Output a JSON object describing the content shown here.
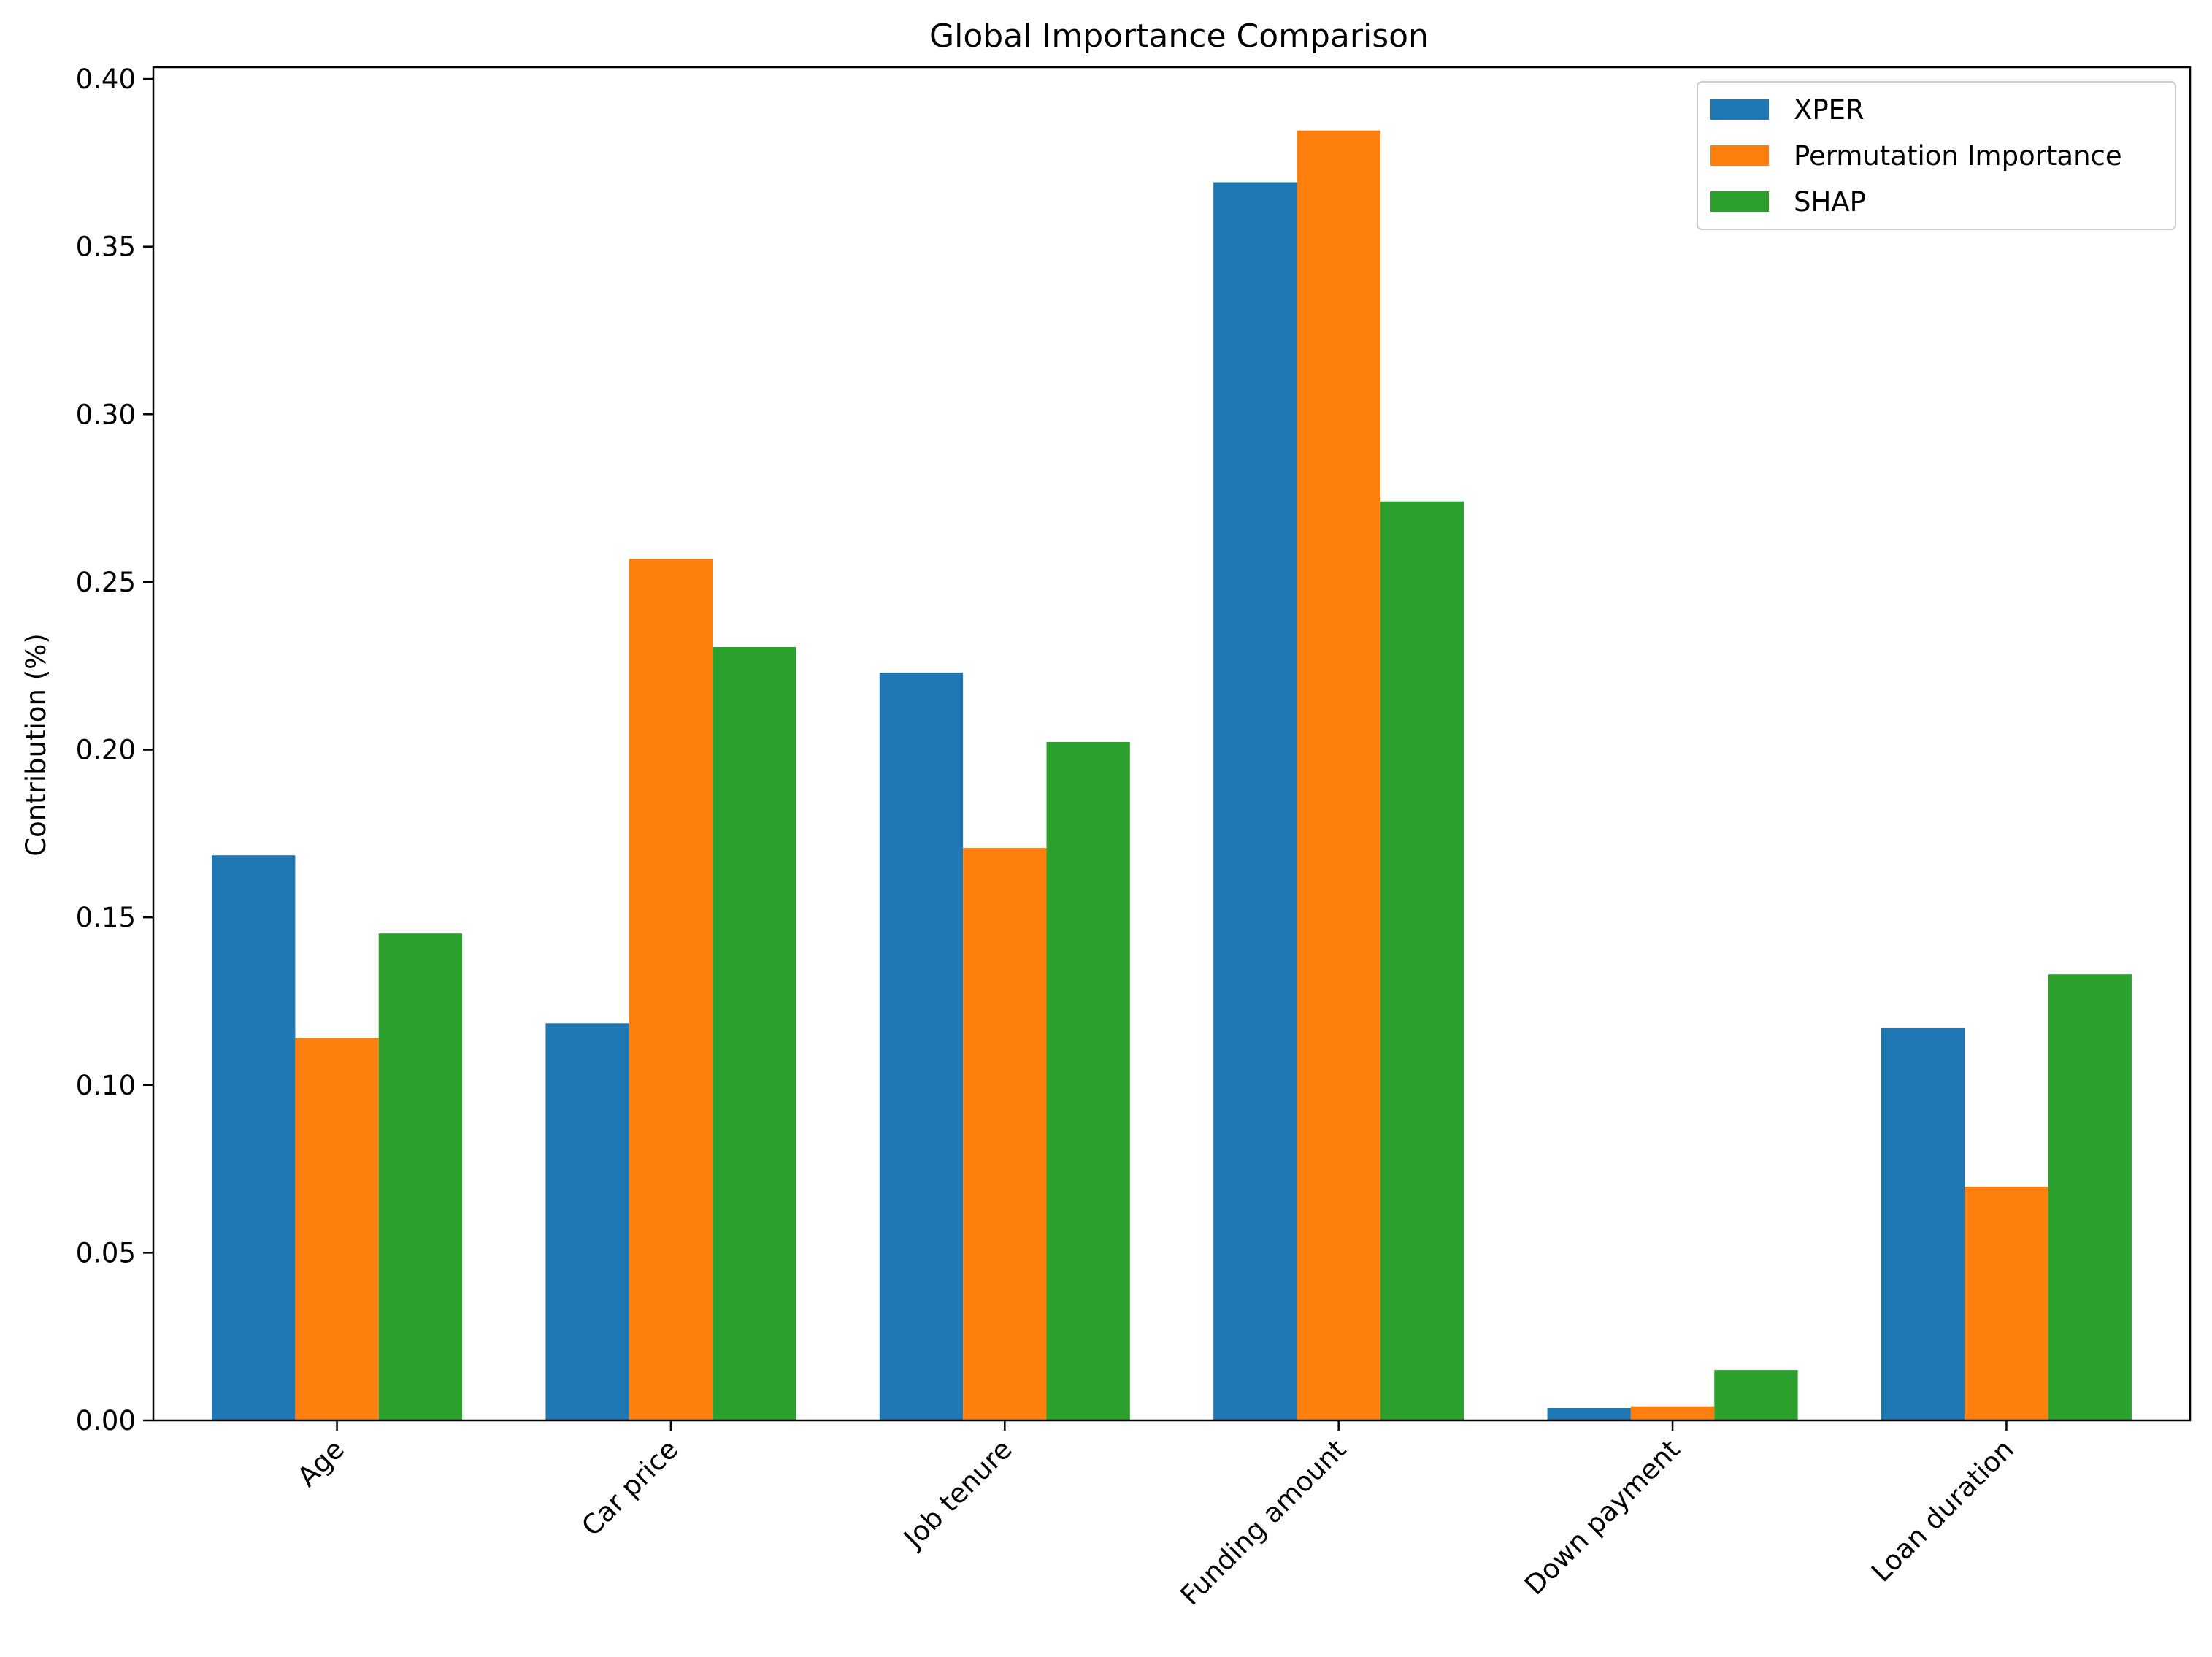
{
  "chart_data": {
    "type": "bar",
    "title": "Global Importance Comparison",
    "xlabel": "",
    "ylabel": "Contribution (%)",
    "categories": [
      "Age",
      "Car price",
      "Job tenure",
      "Funding amount",
      "Down payment",
      "Loan duration"
    ],
    "series": [
      {
        "name": "XPER",
        "color": "#1f77b4",
        "values": [
          0.1685,
          0.1184,
          0.223,
          0.3692,
          0.0037,
          0.117
        ]
      },
      {
        "name": "Permutation Importance",
        "color": "#ff7f0e",
        "values": [
          0.114,
          0.2569,
          0.1707,
          0.3846,
          0.0042,
          0.0697
        ]
      },
      {
        "name": "SHAP",
        "color": "#2ca02c",
        "values": [
          0.1452,
          0.2306,
          0.2023,
          0.274,
          0.015,
          0.133
        ]
      }
    ],
    "ylim": [
      0,
      0.4035
    ],
    "yticks": [
      "0.00",
      "0.05",
      "0.10",
      "0.15",
      "0.20",
      "0.25",
      "0.30",
      "0.35",
      "0.40"
    ],
    "grid": false,
    "legend_position": "top-right"
  }
}
